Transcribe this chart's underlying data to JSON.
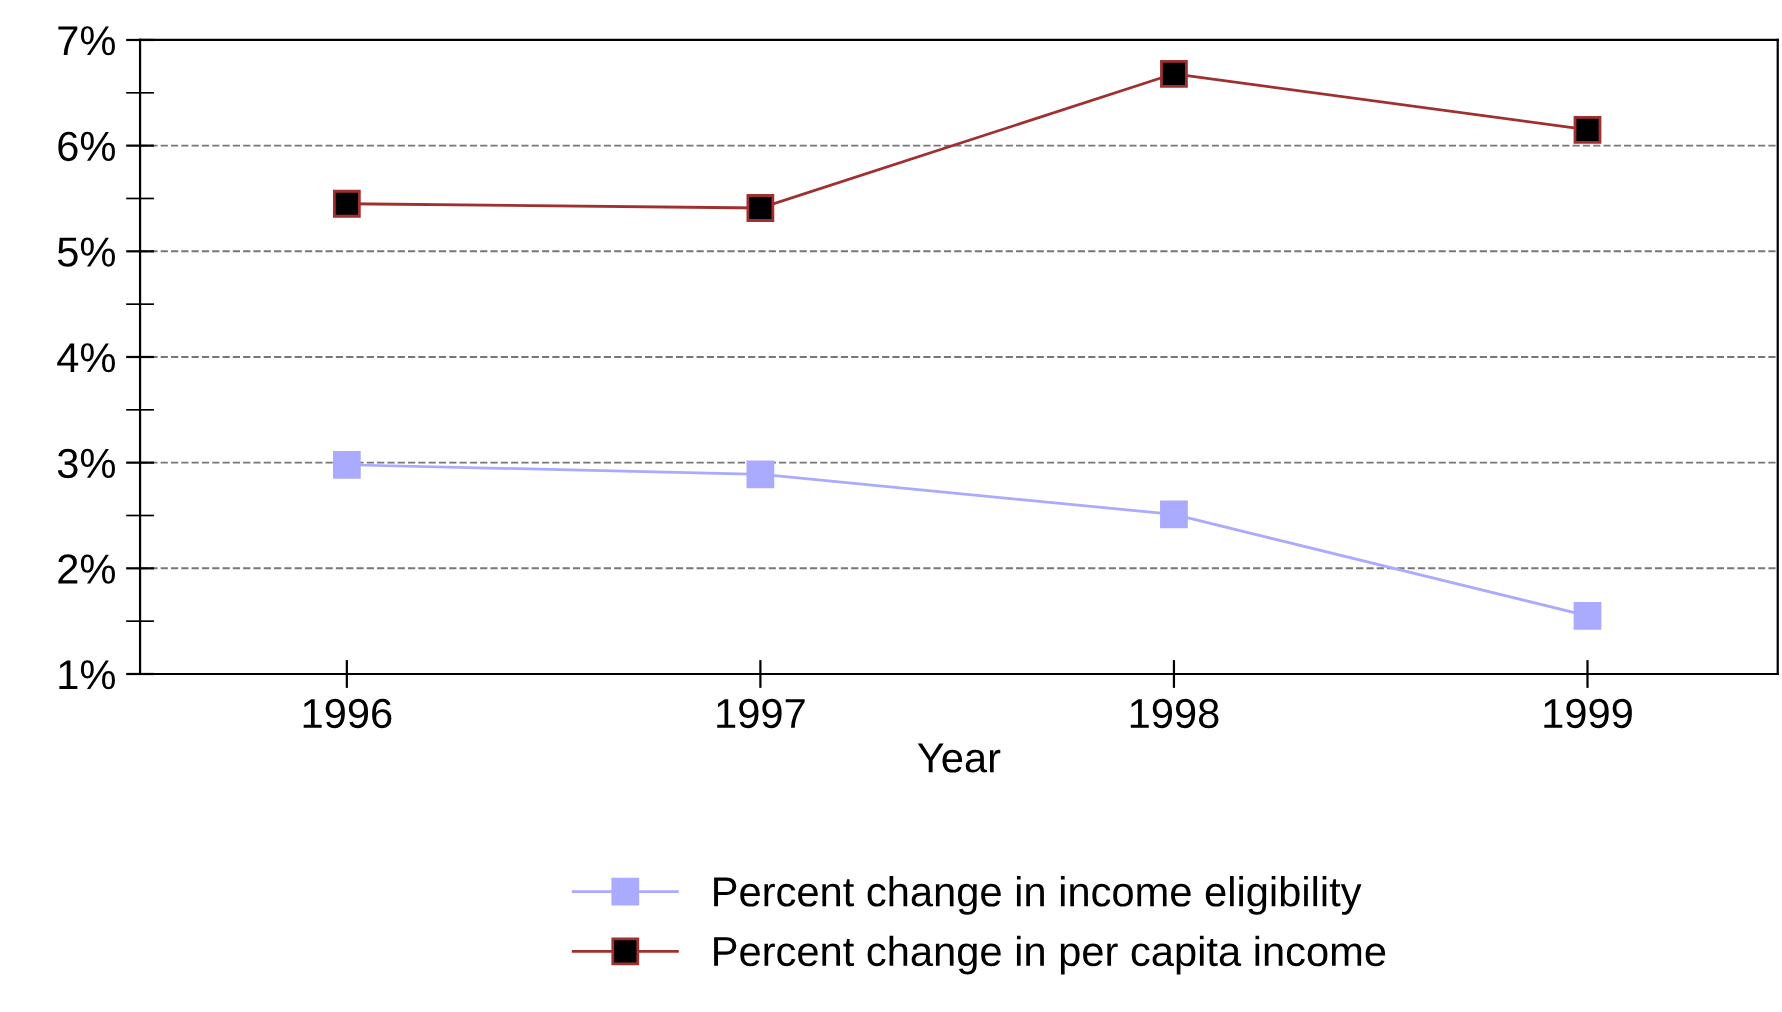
{
  "chart_data": {
    "type": "line",
    "xlabel": "Year",
    "categories": [
      "1996",
      "1997",
      "1998",
      "1999"
    ],
    "series": [
      {
        "name": "Percent change in income eligibility",
        "color": "#aaaaff",
        "values": [
          2.98,
          2.89,
          2.51,
          1.55
        ]
      },
      {
        "name": "Percent change in per capita income",
        "color": "#a03030",
        "values": [
          5.45,
          5.41,
          6.68,
          6.15
        ]
      }
    ],
    "ylim": [
      1,
      7
    ],
    "yticks": [
      {
        "value": 1,
        "label": "1%"
      },
      {
        "value": 1.5,
        "label": null
      },
      {
        "value": 2,
        "label": "2%"
      },
      {
        "value": 2.5,
        "label": null
      },
      {
        "value": 3,
        "label": "3%"
      },
      {
        "value": 3.5,
        "label": null
      },
      {
        "value": 4,
        "label": "4%"
      },
      {
        "value": 4.5,
        "label": null
      },
      {
        "value": 5,
        "label": "5%"
      },
      {
        "value": 5.5,
        "label": null
      },
      {
        "value": 6,
        "label": "6%"
      },
      {
        "value": 6.5,
        "label": null
      },
      {
        "value": 7,
        "label": "7%"
      }
    ],
    "grid": "y",
    "legend": "bottom",
    "marker": "square",
    "line_style": "solid"
  }
}
